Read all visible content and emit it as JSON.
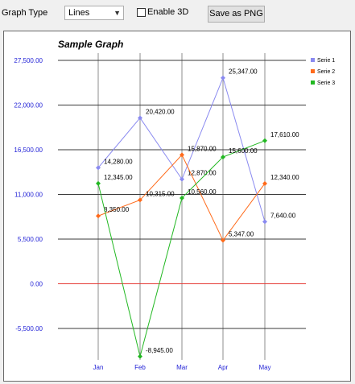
{
  "toolbar": {
    "graph_type_label": "Graph Type",
    "graph_type_value": "Lines",
    "enable_3d_label": "Enable 3D",
    "enable_3d_checked": false,
    "save_label": "Save as PNG"
  },
  "chart_data": {
    "type": "line",
    "title": "Sample Graph",
    "xlabel": "",
    "ylabel": "",
    "categories": [
      "Jan",
      "Feb",
      "Mar",
      "Apr",
      "May"
    ],
    "yticks": [
      -5500,
      0,
      5500,
      11000,
      16500,
      22000,
      27500
    ],
    "ytick_labels": [
      "-5,500.00",
      "0.00",
      "5,500.00",
      "11,000.00",
      "16,500.00",
      "22,000.00",
      "27,500.00"
    ],
    "ylim": [
      -8945,
      27500
    ],
    "grid": true,
    "zero_line_color": "#e53935",
    "axis_label_color": "#1f1fd6",
    "legend_position": "top-right",
    "series": [
      {
        "name": "Serie 1",
        "color": "#8a8af0",
        "values": [
          14280,
          20420,
          12870,
          25347,
          7640
        ],
        "labels": [
          "14,280.00",
          "20,420.00",
          "12,870.00",
          "25,347.00",
          "7,640.00"
        ]
      },
      {
        "name": "Serie 2",
        "color": "#ff6a1a",
        "values": [
          8350,
          10315,
          15870,
          5347,
          12340
        ],
        "labels": [
          "8,350.00",
          "10,315.00",
          "15,870.00",
          "5,347.00",
          "12,340.00"
        ]
      },
      {
        "name": "Serie 3",
        "color": "#22b822",
        "values": [
          12345,
          -8945,
          10560,
          15600,
          17610
        ],
        "labels": [
          "12,345.00",
          "-8,945.00",
          "10,560.00",
          "15,600.00",
          "17,610.00"
        ]
      }
    ]
  }
}
